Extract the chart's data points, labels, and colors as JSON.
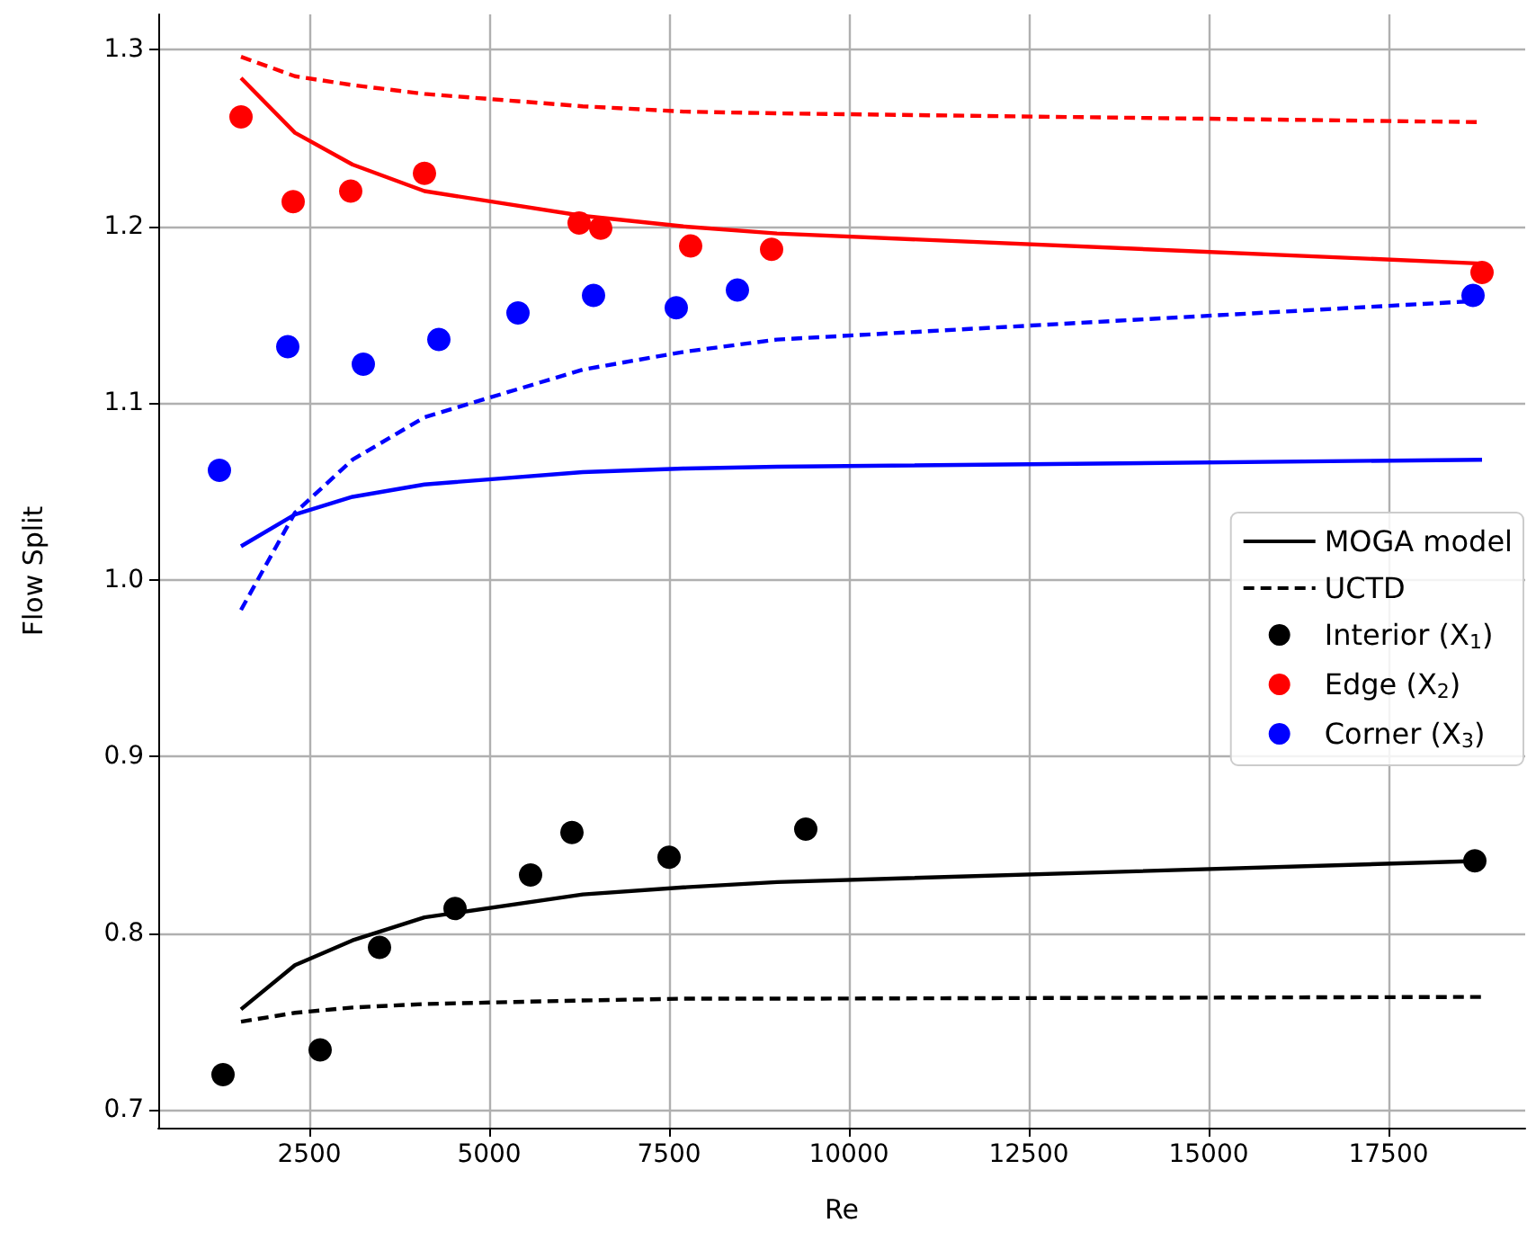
{
  "chart_data": {
    "type": "line",
    "xlabel": "Re",
    "ylabel": "Flow Split",
    "xlim": [
      400,
      19400
    ],
    "ylim": [
      0.69,
      1.32
    ],
    "xticks": [
      2500,
      5000,
      7500,
      10000,
      12500,
      15000,
      17500
    ],
    "yticks": [
      0.7,
      0.8,
      0.9,
      {
        "value": 1,
        "label": "1.0"
      },
      1.1,
      1.2,
      1.3
    ],
    "grid": true,
    "legend": "right",
    "series": [
      {
        "name": "MOGA model",
        "type": "line",
        "line_style": "solid",
        "marker": "none",
        "color": "#000000",
        "x": [
          1550,
          2300,
          3100,
          4100,
          6300,
          7700,
          9000,
          18800
        ],
        "values": [
          0.757,
          0.782,
          0.796,
          0.809,
          0.822,
          0.826,
          0.829,
          0.841
        ]
      },
      {
        "name": "UCTD",
        "type": "line",
        "line_style": "dashed",
        "marker": "none",
        "color": "#000000",
        "x": [
          1550,
          2300,
          3100,
          4100,
          6300,
          7700,
          9000,
          18800
        ],
        "values": [
          0.75,
          0.755,
          0.758,
          0.76,
          0.762,
          0.763,
          0.763,
          0.764
        ]
      },
      {
        "type": "line",
        "line_style": "solid",
        "marker": "none",
        "color": "#ff0000",
        "x": [
          1550,
          2300,
          3100,
          4100,
          6300,
          7700,
          9000,
          18800
        ],
        "values": [
          1.284,
          1.253,
          1.235,
          1.22,
          1.206,
          1.2,
          1.196,
          1.179
        ]
      },
      {
        "type": "line",
        "line_style": "dashed",
        "marker": "none",
        "color": "#ff0000",
        "x": [
          1550,
          2300,
          3100,
          4100,
          6300,
          7700,
          9000,
          18800
        ],
        "values": [
          1.296,
          1.285,
          1.28,
          1.275,
          1.268,
          1.265,
          1.264,
          1.259
        ]
      },
      {
        "type": "line",
        "line_style": "solid",
        "marker": "none",
        "color": "#0000ff",
        "x": [
          1550,
          2300,
          3100,
          4100,
          6300,
          7700,
          9000,
          18800
        ],
        "values": [
          1.019,
          1.037,
          1.047,
          1.054,
          1.061,
          1.063,
          1.064,
          1.068
        ]
      },
      {
        "type": "line",
        "line_style": "dashed",
        "marker": "none",
        "color": "#0000ff",
        "x": [
          1550,
          2300,
          3100,
          4100,
          6300,
          7700,
          9000,
          18800
        ],
        "values": [
          0.983,
          1.038,
          1.068,
          1.092,
          1.119,
          1.129,
          1.136,
          1.158
        ]
      },
      {
        "name": "Interior (X$_{1}$)",
        "type": "scatter",
        "marker": "circle",
        "color": "#000000",
        "x": [
          1300,
          2650,
          3475,
          4525,
          5575,
          6150,
          7500,
          9400,
          18700
        ],
        "values": [
          0.72,
          0.734,
          0.792,
          0.814,
          0.833,
          0.857,
          0.843,
          0.859,
          0.841
        ]
      },
      {
        "name": "Edge (X$_{2}$)",
        "type": "scatter",
        "marker": "circle",
        "color": "#ff0000",
        "x": [
          1550,
          2275,
          3075,
          4100,
          6250,
          6550,
          7800,
          8925,
          18800
        ],
        "values": [
          1.262,
          1.214,
          1.22,
          1.23,
          1.202,
          1.199,
          1.189,
          1.187,
          1.174
        ]
      },
      {
        "name": "Corner (X$_{3}$)",
        "type": "scatter",
        "marker": "circle",
        "color": "#0000ff",
        "x": [
          1250,
          2200,
          3250,
          4300,
          5400,
          6450,
          7600,
          8450,
          18675
        ],
        "values": [
          1.062,
          1.132,
          1.122,
          1.136,
          1.151,
          1.161,
          1.154,
          1.164,
          1.161
        ]
      }
    ]
  }
}
